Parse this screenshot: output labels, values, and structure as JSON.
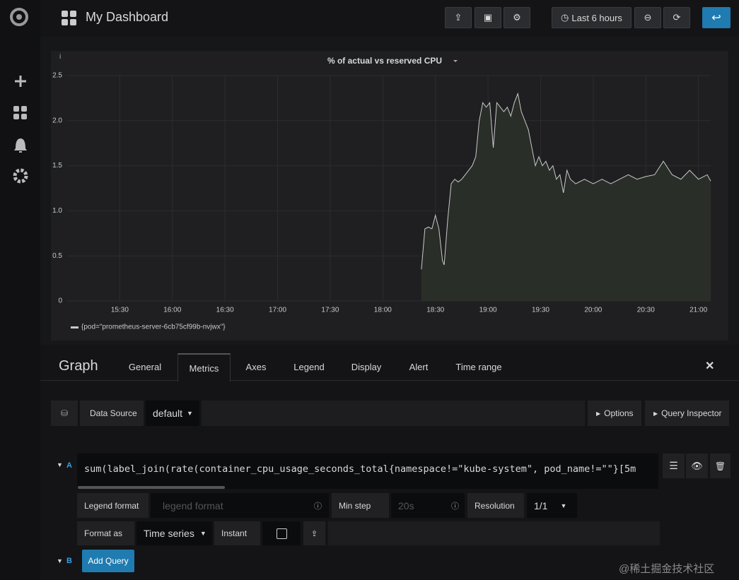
{
  "navbar": {
    "title": "My Dashboard",
    "time_range": "Last 6 hours"
  },
  "chart_data": {
    "type": "line",
    "title": "% of actual vs reserved CPU",
    "x": [
      "18:22",
      "18:24",
      "18:26",
      "18:28",
      "18:30",
      "18:32",
      "18:34",
      "18:35",
      "18:37",
      "18:39",
      "18:41",
      "18:43",
      "18:45",
      "18:47",
      "18:49",
      "18:51",
      "18:53",
      "18:55",
      "18:57",
      "18:59",
      "19:01",
      "19:03",
      "19:05",
      "19:07",
      "19:09",
      "19:11",
      "19:13",
      "19:15",
      "19:17",
      "19:19",
      "19:21",
      "19:23",
      "19:25",
      "19:27",
      "19:29",
      "19:31",
      "19:33",
      "19:35",
      "19:37",
      "19:39",
      "19:41",
      "19:43",
      "19:45",
      "19:47",
      "19:50",
      "19:55",
      "20:00",
      "20:05",
      "20:10",
      "20:15",
      "20:20",
      "20:25",
      "20:30",
      "20:35",
      "20:40",
      "20:45",
      "20:50",
      "20:55",
      "21:00",
      "21:05",
      "21:07"
    ],
    "series": [
      {
        "name": "{pod=\"prometheus-server-6cb75cf99b-nvjwx\"}",
        "color": "#c8c9ca",
        "values": [
          0.35,
          0.8,
          0.82,
          0.8,
          0.95,
          0.8,
          0.45,
          0.4,
          0.9,
          1.3,
          1.35,
          1.32,
          1.35,
          1.4,
          1.45,
          1.5,
          1.6,
          2.0,
          2.2,
          2.15,
          2.2,
          1.7,
          2.2,
          2.15,
          2.1,
          2.15,
          2.05,
          2.2,
          2.3,
          2.1,
          2.0,
          1.9,
          1.7,
          1.5,
          1.6,
          1.5,
          1.55,
          1.45,
          1.5,
          1.35,
          1.4,
          1.2,
          1.45,
          1.35,
          1.3,
          1.35,
          1.3,
          1.35,
          1.3,
          1.35,
          1.4,
          1.35,
          1.38,
          1.4,
          1.55,
          1.4,
          1.35,
          1.45,
          1.35,
          1.4,
          1.33
        ]
      }
    ],
    "xlim": [
      "15:00",
      "21:07"
    ],
    "xticks": [
      "15:30",
      "16:00",
      "16:30",
      "17:00",
      "17:30",
      "18:00",
      "18:30",
      "19:00",
      "19:30",
      "20:00",
      "20:30",
      "21:00"
    ],
    "ylim": [
      0,
      2.5
    ],
    "yticks": [
      0,
      0.5,
      {
        "value": 1,
        "label": "1.0"
      },
      1.5,
      {
        "value": 2,
        "label": "2.0"
      },
      2.5
    ],
    "grid": true,
    "fill": true
  },
  "editor": {
    "title": "Graph",
    "tabs": [
      "General",
      "Metrics",
      "Axes",
      "Legend",
      "Display",
      "Alert",
      "Time range"
    ]
  },
  "datasource": {
    "label": "Data Source",
    "value": "default",
    "options": "Options",
    "inspector": "Query Inspector"
  },
  "query": {
    "ref": "A",
    "expr": "sum(label_join(rate(container_cpu_usage_seconds_total{namespace!=\"kube-system\", pod_name!=\"\"}[5m",
    "legend_label": "Legend format",
    "legend_placeholder": "legend format",
    "min_step_label": "Min step",
    "min_step_placeholder": "20s",
    "resolution_label": "Resolution",
    "resolution": "1/1",
    "format_label": "Format as",
    "format": "Time series",
    "instant_label": "Instant"
  },
  "add_query": {
    "ref": "B",
    "button": "Add Query"
  },
  "watermark": "@稀土掘金技术社区"
}
